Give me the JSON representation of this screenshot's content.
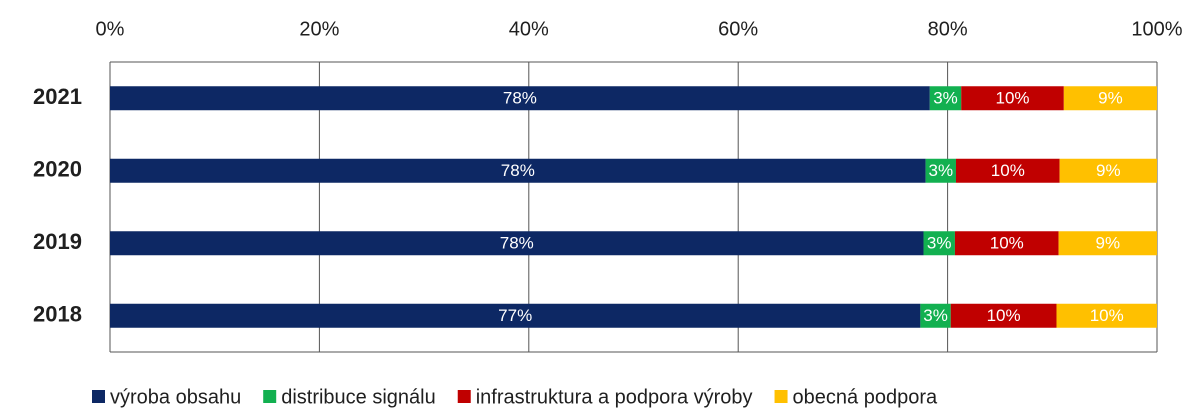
{
  "chart_data": {
    "type": "stacked_barh",
    "categories": [
      "2021",
      "2020",
      "2019",
      "2018"
    ],
    "series": [
      {
        "name": "výroba obsahu",
        "color": "#0d2864",
        "values": [
          78.3,
          77.9,
          77.7,
          77.4
        ],
        "value_labels": [
          "78%",
          "78%",
          "78%",
          "77%"
        ]
      },
      {
        "name": "distribuce signálu",
        "color": "#12b050",
        "values": [
          3.0,
          2.9,
          3.0,
          2.9
        ],
        "value_labels": [
          "3%",
          "3%",
          "3%",
          "3%"
        ]
      },
      {
        "name": "infrastruktura a podpora výroby",
        "color": "#c00000",
        "values": [
          9.8,
          9.9,
          9.9,
          10.1
        ],
        "value_labels": [
          "10%",
          "10%",
          "10%",
          "10%"
        ]
      },
      {
        "name": "obecná podpora",
        "color": "#ffc000",
        "values": [
          8.9,
          9.3,
          9.4,
          9.6
        ],
        "value_labels": [
          "9%",
          "9%",
          "9%",
          "10%"
        ]
      }
    ],
    "xlim": [
      0,
      100
    ],
    "xticks": [
      {
        "value": 0,
        "label": "0%"
      },
      {
        "value": 20,
        "label": "20%"
      },
      {
        "value": 40,
        "label": "40%"
      },
      {
        "value": 60,
        "label": "60%"
      },
      {
        "value": 80,
        "label": "80%"
      },
      {
        "value": 100,
        "label": "100%"
      }
    ],
    "grid": true,
    "legend": "bottom"
  }
}
